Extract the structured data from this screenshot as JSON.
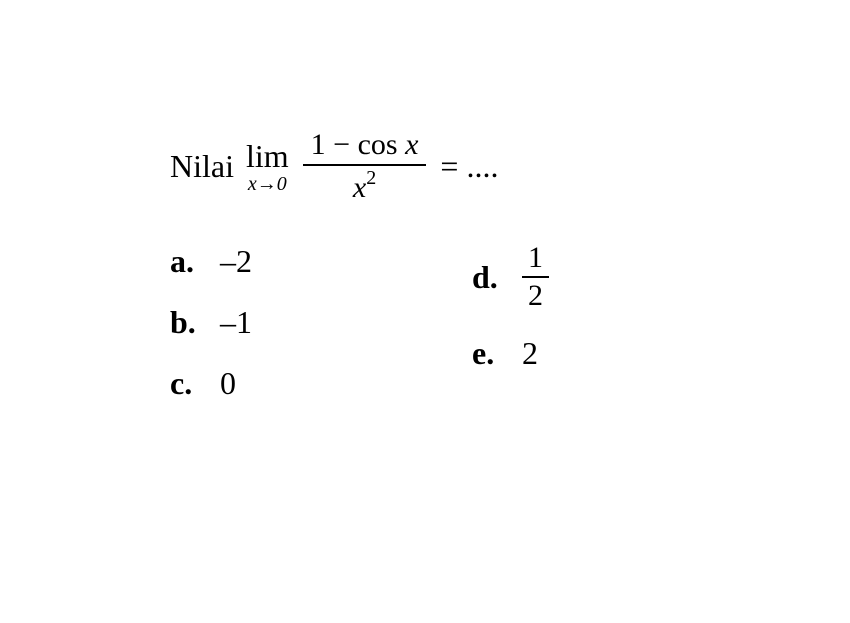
{
  "question": {
    "prefix": "Nilai",
    "lim_text": "lim",
    "lim_sub_var": "x",
    "lim_sub_arrow": "→",
    "lim_sub_val": "0",
    "numerator_pre": "1 − cos ",
    "numerator_var": "x",
    "denominator_var": "x",
    "denominator_exp": "2",
    "equals": "= ....",
    "font_size": 32,
    "font_family": "Times New Roman",
    "text_color": "#000000",
    "background_color": "#ffffff"
  },
  "options": {
    "left": [
      {
        "label": "a.",
        "value": "–2"
      },
      {
        "label": "b.",
        "value": "–1"
      },
      {
        "label": "c.",
        "value": "0"
      }
    ],
    "right": [
      {
        "label": "d.",
        "numerator": "1",
        "denominator": "2"
      },
      {
        "label": "e.",
        "value": "2"
      }
    ]
  }
}
